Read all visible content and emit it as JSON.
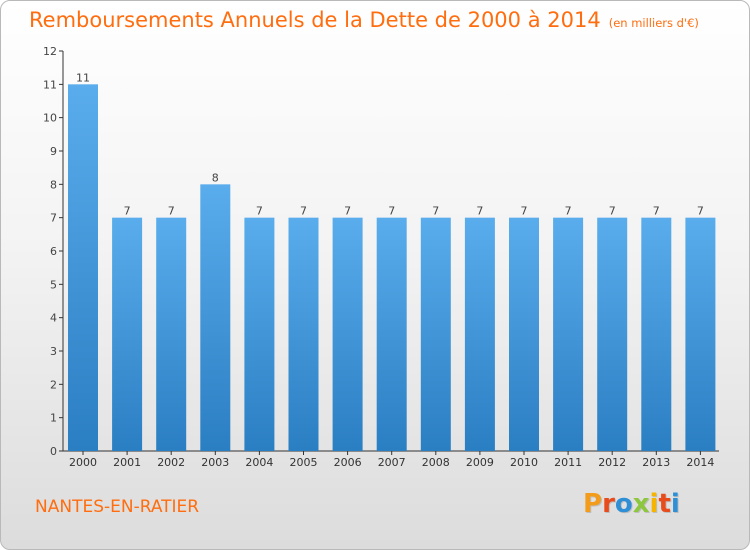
{
  "header": {
    "title": "Remboursements Annuels de la Dette de 2000 à 2014",
    "unit": "(en milliers d'€)"
  },
  "footer": {
    "commune": "NANTES-EN-RATIER",
    "brand": "Proxiti"
  },
  "colors": {
    "accent": "#ff6d0f",
    "bar_light": "#5aadec",
    "bar_dark": "#2a7ec2",
    "brand_letters": [
      "#f39c1c",
      "#e84c1d",
      "#2f8fd6",
      "#8dc63f",
      "#f5b400",
      "#e84c1d",
      "#2f8fd6"
    ]
  },
  "chart_data": {
    "type": "bar",
    "title": "Remboursements Annuels de la Dette de 2000 à 2014",
    "subtitle": "(en milliers d'€)",
    "xlabel": "",
    "ylabel": "",
    "categories": [
      "2000",
      "2001",
      "2002",
      "2003",
      "2004",
      "2005",
      "2006",
      "2007",
      "2008",
      "2009",
      "2010",
      "2011",
      "2012",
      "2013",
      "2014"
    ],
    "values": [
      11,
      7,
      7,
      8,
      7,
      7,
      7,
      7,
      7,
      7,
      7,
      7,
      7,
      7,
      7
    ],
    "ylim": [
      0,
      12
    ],
    "yticks": [
      0,
      1,
      2,
      3,
      4,
      5,
      6,
      7,
      8,
      9,
      10,
      11,
      12
    ],
    "grid": false,
    "legend": "none"
  }
}
